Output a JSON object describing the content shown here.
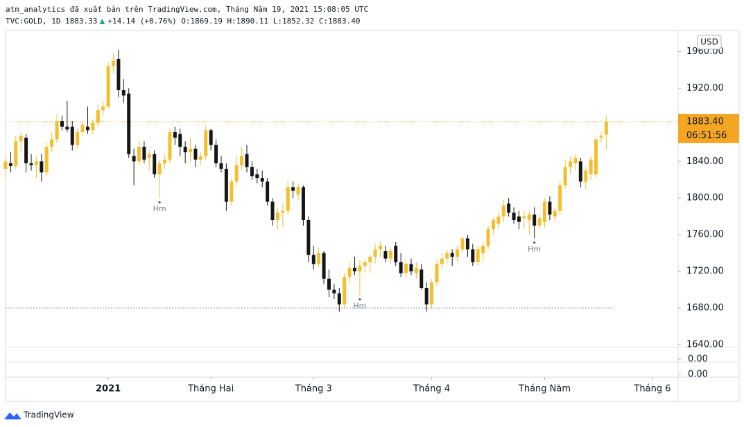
{
  "header": {
    "line1": "atm_analytics đã xuất bản trên TradingView.com, Tháng Năm 19, 2021 15:08:05 UTC",
    "symbol": "TVC:GOLD, 1D",
    "price": "1883.33",
    "change": "+14.14 (+0.76%)",
    "ohlc": [
      {
        "label": "O:",
        "value": "1869.19"
      },
      {
        "label": "H:",
        "value": "1890.11"
      },
      {
        "label": "L:",
        "value": "1852.32"
      },
      {
        "label": "C:",
        "value": "1883.40"
      }
    ]
  },
  "chart_data": {
    "type": "candlestick",
    "currency": "USD",
    "grid": false,
    "up_color": "#f4be2c",
    "down_color": "#161616",
    "xlim": [
      0,
      131
    ],
    "ylim": [
      1637,
      1983
    ],
    "yticks": [
      {
        "value": 1640,
        "label": "1640.00"
      },
      {
        "value": 1680,
        "label": "1680.00"
      },
      {
        "value": 1720,
        "label": "1720.00"
      },
      {
        "value": 1760,
        "label": "1760.00"
      },
      {
        "value": 1800,
        "label": "1800.00"
      },
      {
        "value": 1840,
        "label": "1840.00"
      },
      {
        "value": 1880,
        "label": "1880.00"
      },
      {
        "value": 1920,
        "label": "1920.00"
      },
      {
        "value": 1960,
        "label": "1960.00"
      }
    ],
    "xticks": [
      {
        "value": 20,
        "label": "2021"
      },
      {
        "value": 40,
        "label": "Tháng Hai"
      },
      {
        "value": 60,
        "label": "Tháng 3"
      },
      {
        "value": 83,
        "label": "Tháng 4"
      },
      {
        "value": 105,
        "label": "Tháng Năm"
      },
      {
        "value": 126,
        "label": "Tháng 6"
      }
    ],
    "last_price": {
      "value": 1883.4,
      "label": "1883.40",
      "countdown": "06:51:56",
      "color": "#f4a623"
    },
    "support_line": {
      "value": 1680,
      "color": "#8e8fb8"
    },
    "annotations": [
      {
        "text": "Hm",
        "x": 30
      },
      {
        "text": "Hm",
        "x": 69
      },
      {
        "text": "Hm",
        "x": 103
      }
    ],
    "lower_panes": [
      {
        "yticks": [
          {
            "value": 0,
            "label": "0.00"
          }
        ]
      },
      {
        "yticks": [
          {
            "value": 0,
            "label": "0.00"
          }
        ]
      }
    ],
    "open": [
      1832,
      1838,
      1835,
      1862,
      1866,
      1838,
      1836,
      1840,
      1828,
      1856,
      1864,
      1884,
      1878,
      1878,
      1858,
      1872,
      1878,
      1874,
      1882,
      1896,
      1900,
      1944,
      1952,
      1918,
      1914,
      1846,
      1840,
      1856,
      1844,
      1848,
      1826,
      1838,
      1842,
      1872,
      1870,
      1856,
      1850,
      1854,
      1842,
      1846,
      1874,
      1858,
      1838,
      1832,
      1796,
      1818,
      1836,
      1848,
      1834,
      1826,
      1822,
      1818,
      1796,
      1776,
      1784,
      1786,
      1812,
      1804,
      1812,
      1776,
      1738,
      1728,
      1740,
      1712,
      1700,
      1696,
      1684,
      1714,
      1724,
      1720,
      1726,
      1730,
      1736,
      1744,
      1742,
      1734,
      1748,
      1730,
      1718,
      1728,
      1718,
      1722,
      1702,
      1684,
      1708,
      1728,
      1734,
      1740,
      1736,
      1744,
      1756,
      1744,
      1730,
      1740,
      1748,
      1766,
      1772,
      1780,
      1794,
      1784,
      1780,
      1778,
      1776,
      1782,
      1770,
      1774,
      1796,
      1780,
      1786,
      1814,
      1834,
      1838,
      1840,
      1818,
      1826,
      1826,
      1866,
      1869.19
    ],
    "high": [
      1845,
      1850,
      1868,
      1872,
      1870,
      1848,
      1845,
      1848,
      1862,
      1872,
      1892,
      1890,
      1906,
      1884,
      1876,
      1884,
      1900,
      1886,
      1902,
      1906,
      1948,
      1958,
      1962,
      1930,
      1920,
      1854,
      1862,
      1862,
      1852,
      1852,
      1842,
      1848,
      1876,
      1878,
      1876,
      1862,
      1866,
      1858,
      1850,
      1880,
      1876,
      1864,
      1846,
      1838,
      1822,
      1846,
      1856,
      1858,
      1840,
      1832,
      1830,
      1822,
      1800,
      1790,
      1794,
      1818,
      1818,
      1816,
      1814,
      1780,
      1748,
      1746,
      1742,
      1722,
      1706,
      1702,
      1718,
      1730,
      1736,
      1732,
      1734,
      1738,
      1750,
      1752,
      1748,
      1746,
      1752,
      1740,
      1732,
      1734,
      1730,
      1728,
      1708,
      1712,
      1732,
      1740,
      1744,
      1744,
      1748,
      1758,
      1760,
      1750,
      1748,
      1752,
      1770,
      1778,
      1784,
      1798,
      1800,
      1790,
      1786,
      1786,
      1786,
      1790,
      1782,
      1800,
      1802,
      1790,
      1818,
      1842,
      1846,
      1848,
      1844,
      1834,
      1846,
      1868,
      1872,
      1890.11
    ],
    "low": [
      1822,
      1828,
      1832,
      1850,
      1828,
      1830,
      1822,
      1818,
      1824,
      1850,
      1860,
      1874,
      1872,
      1852,
      1854,
      1868,
      1870,
      1870,
      1878,
      1890,
      1898,
      1936,
      1910,
      1904,
      1844,
      1814,
      1836,
      1838,
      1830,
      1822,
      1800,
      1832,
      1838,
      1858,
      1846,
      1838,
      1840,
      1834,
      1836,
      1842,
      1852,
      1834,
      1828,
      1786,
      1792,
      1814,
      1830,
      1828,
      1820,
      1816,
      1812,
      1792,
      1770,
      1766,
      1768,
      1782,
      1800,
      1798,
      1770,
      1730,
      1722,
      1724,
      1706,
      1692,
      1690,
      1676,
      1680,
      1708,
      1716,
      1694,
      1718,
      1718,
      1728,
      1736,
      1730,
      1728,
      1726,
      1714,
      1714,
      1716,
      1712,
      1700,
      1676,
      1680,
      1704,
      1722,
      1728,
      1726,
      1730,
      1740,
      1736,
      1726,
      1726,
      1730,
      1744,
      1760,
      1766,
      1774,
      1780,
      1772,
      1766,
      1766,
      1760,
      1756,
      1766,
      1768,
      1776,
      1774,
      1782,
      1810,
      1826,
      1830,
      1812,
      1810,
      1820,
      1822,
      1860,
      1852.32
    ],
    "close": [
      1840,
      1835,
      1862,
      1868,
      1838,
      1836,
      1840,
      1828,
      1856,
      1864,
      1884,
      1878,
      1875,
      1858,
      1872,
      1880,
      1874,
      1882,
      1896,
      1900,
      1944,
      1950,
      1918,
      1912,
      1848,
      1840,
      1856,
      1842,
      1848,
      1826,
      1838,
      1842,
      1872,
      1866,
      1856,
      1850,
      1854,
      1842,
      1846,
      1874,
      1858,
      1838,
      1832,
      1796,
      1818,
      1836,
      1846,
      1834,
      1824,
      1822,
      1818,
      1796,
      1776,
      1784,
      1786,
      1812,
      1808,
      1812,
      1776,
      1738,
      1728,
      1740,
      1712,
      1700,
      1696,
      1684,
      1714,
      1724,
      1720,
      1726,
      1730,
      1736,
      1744,
      1748,
      1734,
      1742,
      1730,
      1718,
      1728,
      1720,
      1724,
      1702,
      1684,
      1708,
      1728,
      1734,
      1740,
      1736,
      1744,
      1756,
      1744,
      1730,
      1744,
      1748,
      1766,
      1776,
      1780,
      1792,
      1784,
      1776,
      1774,
      1780,
      1782,
      1770,
      1778,
      1796,
      1782,
      1786,
      1814,
      1834,
      1840,
      1844,
      1818,
      1830,
      1842,
      1864,
      1868,
      1883.4
    ]
  },
  "footer": {
    "brand": "TradingView"
  }
}
